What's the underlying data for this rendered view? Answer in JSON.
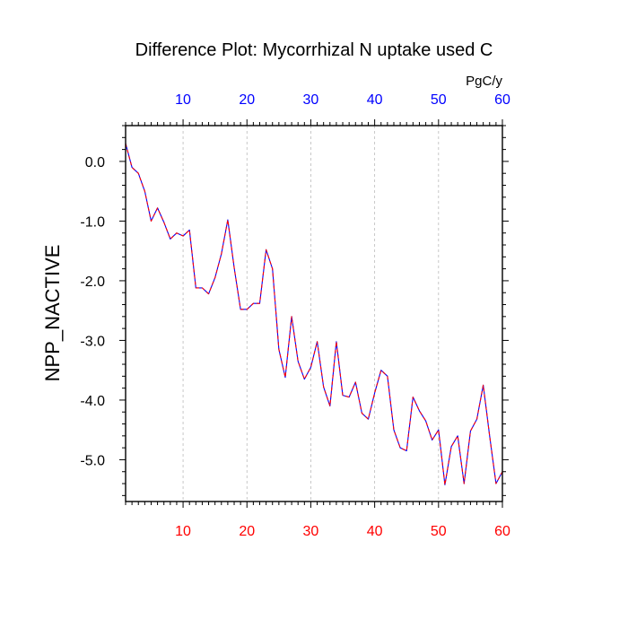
{
  "chart_data": {
    "type": "line",
    "title": "Difference Plot: Mycorrhizal N uptake used C",
    "ylabel": "NPP_NACTIVE",
    "top_axis_unit": "PgC/y",
    "xlim": [
      1,
      60
    ],
    "ylim": [
      -5.7,
      0.6
    ],
    "x_ticks": [
      10,
      20,
      30,
      40,
      50,
      60
    ],
    "x_tick_labels": [
      "10",
      "20",
      "30",
      "40",
      "50",
      "60"
    ],
    "y_ticks": [
      0.0,
      -1.0,
      -2.0,
      -3.0,
      -4.0,
      -5.0
    ],
    "y_tick_labels": [
      "0.0",
      "-1.0",
      "-2.0",
      "-3.0",
      "-4.0",
      "-5.0"
    ],
    "grid": "vertical dashed at x ticks",
    "colors": {
      "bottom_tick_labels": "#ff0000",
      "top_tick_labels": "#0000ff",
      "series_line_1": "#0000ff",
      "series_line_2": "#ff0000",
      "grid": "#bbbbbb"
    },
    "series": [
      {
        "x": [
          1,
          2,
          3,
          4,
          5,
          6,
          7,
          8,
          9,
          10,
          11,
          12,
          13,
          14,
          15,
          16,
          17,
          18,
          19,
          20,
          21,
          22,
          23,
          24,
          25,
          26,
          27,
          28,
          29,
          30,
          31,
          32,
          33,
          34,
          35,
          36,
          37,
          38,
          39,
          40,
          41,
          42,
          43,
          44,
          45,
          46,
          47,
          48,
          49,
          50,
          51,
          52,
          53,
          54,
          55,
          56,
          57,
          58,
          59,
          60
        ],
        "values": [
          0.3,
          -0.1,
          -0.2,
          -0.5,
          -1.0,
          -0.78,
          -1.02,
          -1.3,
          -1.2,
          -1.25,
          -1.15,
          -2.12,
          -2.12,
          -2.22,
          -1.95,
          -1.55,
          -0.98,
          -1.78,
          -2.48,
          -2.48,
          -2.38,
          -2.38,
          -1.48,
          -1.8,
          -3.15,
          -3.62,
          -2.6,
          -3.35,
          -3.65,
          -3.45,
          -3.02,
          -3.78,
          -4.1,
          -3.02,
          -3.92,
          -3.95,
          -3.7,
          -4.22,
          -4.32,
          -3.88,
          -3.5,
          -3.6,
          -4.5,
          -4.8,
          -4.85,
          -3.95,
          -4.18,
          -4.35,
          -4.67,
          -4.5,
          -5.42,
          -4.78,
          -4.6,
          -5.4,
          -4.52,
          -4.32,
          -3.75,
          -4.6,
          -5.4,
          -5.2
        ]
      }
    ]
  }
}
